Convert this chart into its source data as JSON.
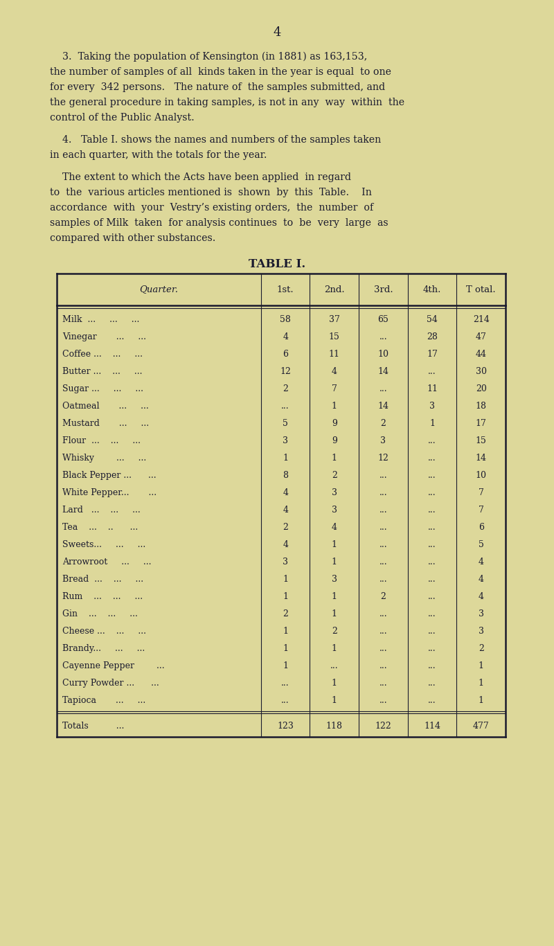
{
  "bg_color": "#ddd89a",
  "page_number": "4",
  "para3_lines": [
    "    3.  Taking the population of Kensington (in 1881) as 163,153,",
    "the number of samples of all  kinds taken in the year is equal  to one",
    "for every  342 persons.   The nature of  the samples submitted, and",
    "the general procedure in taking samples, is not in any  way  within  the",
    "control of the Public Analyst."
  ],
  "para4a_lines": [
    "    4.   Table I. shows the names and numbers of the samples taken",
    "in each quarter, with the totals for the year."
  ],
  "para4b_lines": [
    "    The extent to which the Acts have been applied  in regard",
    "to  the  various articles mentioned is  shown  by  this  Table.    In",
    "accordance  with  your  Vestry’s existing orders,  the  number  of",
    "samples of Milk  taken  for analysis continues  to  be  very  large  as",
    "compared with other substances."
  ],
  "table_title": "TABLE I.",
  "col_headers": [
    "Quarter.",
    "1st.",
    "2nd.",
    "3rd.",
    "4th.",
    "T otal."
  ],
  "rows": [
    [
      "Milk  ...     ...     ...",
      "58",
      "37",
      "65",
      "54",
      "214"
    ],
    [
      "Vinegar       ...     ...",
      "4",
      "15",
      "...",
      "28",
      "47"
    ],
    [
      "Coffee ...    ...     ...",
      "6",
      "11",
      "10",
      "17",
      "44"
    ],
    [
      "Butter ...    ...     ...",
      "12",
      "4",
      "14",
      "...",
      "30"
    ],
    [
      "Sugar ...     ...     ...",
      "2",
      "7",
      "...",
      "11",
      "20"
    ],
    [
      "Oatmeal       ...     ...",
      "...",
      "1",
      "14",
      "3",
      "18"
    ],
    [
      "Mustard       ...     ...",
      "5",
      "9",
      "2",
      "1",
      "17"
    ],
    [
      "Flour  ...    ...     ...",
      "3",
      "9",
      "3",
      "...",
      "15"
    ],
    [
      "Whisky        ...     ...",
      "1",
      "1",
      "12",
      "...",
      "14"
    ],
    [
      "Black Pepper ...      ...",
      "8",
      "2",
      "...",
      "...",
      "10"
    ],
    [
      "White Pepper...       ...",
      "4",
      "3",
      "...",
      "...",
      "7"
    ],
    [
      "Lard   ...    ...     ...",
      "4",
      "3",
      "...",
      "...",
      "7"
    ],
    [
      "Tea    ...    ..      ...",
      "2",
      "4",
      "...",
      "...",
      "6"
    ],
    [
      "Sweets...     ...     ...",
      "4",
      "1",
      "...",
      "...",
      "5"
    ],
    [
      "Arrowroot     ...     ...",
      "3",
      "1",
      "...",
      "...",
      "4"
    ],
    [
      "Bread  ...    ...     ...",
      "1",
      "3",
      "...",
      "...",
      "4"
    ],
    [
      "Rum    ...    ...     ...",
      "1",
      "1",
      "2",
      "...",
      "4"
    ],
    [
      "Gin    ...    ...     ...",
      "2",
      "1",
      "...",
      "...",
      "3"
    ],
    [
      "Cheese ...    ...     ...",
      "1",
      "2",
      "...",
      "...",
      "3"
    ],
    [
      "Brandy...     ...     ...",
      "1",
      "1",
      "...",
      "...",
      "2"
    ],
    [
      "Cayenne Pepper        ...",
      "1",
      "...",
      "...",
      "...",
      "1"
    ],
    [
      "Curry Powder ...      ...",
      "...",
      "1",
      "...",
      "...",
      "1"
    ],
    [
      "Tapioca       ...     ...",
      "...",
      "1",
      "...",
      "...",
      "1"
    ]
  ],
  "totals_row": [
    "Totals          ...",
    "123",
    "118",
    "122",
    "114",
    "477"
  ],
  "text_color": "#1a1a2e",
  "serif_font": "DejaVu Serif"
}
